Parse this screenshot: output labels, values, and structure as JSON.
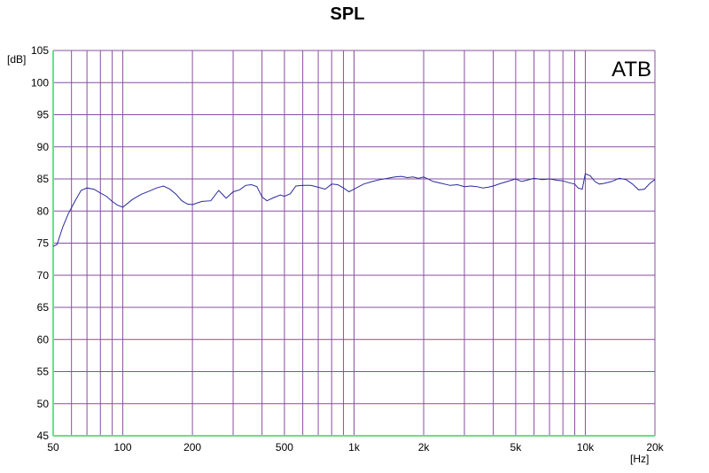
{
  "chart_data": {
    "type": "line",
    "title": "SPL",
    "ylabel": "[dB]",
    "xlabel": "[Hz]",
    "annotation": "ATB",
    "xscale": "log",
    "xlim": [
      50,
      20000
    ],
    "ylim": [
      45,
      105
    ],
    "grid": true,
    "colors": {
      "grid": "#8a4fa0",
      "axis": "#66e08a",
      "line": "#2a2a9e"
    },
    "y_ticks": [
      45,
      50,
      55,
      60,
      65,
      70,
      75,
      80,
      85,
      90,
      95,
      100,
      105
    ],
    "x_ticks": [
      {
        "value": 50,
        "label": "50"
      },
      {
        "value": 100,
        "label": "100"
      },
      {
        "value": 200,
        "label": "200"
      },
      {
        "value": 500,
        "label": "500"
      },
      {
        "value": 1000,
        "label": "1k"
      },
      {
        "value": 2000,
        "label": "2k"
      },
      {
        "value": 5000,
        "label": "5k"
      },
      {
        "value": 10000,
        "label": "10k"
      },
      {
        "value": 20000,
        "label": "20k"
      }
    ],
    "x_gridlines": [
      60,
      70,
      80,
      90,
      100,
      200,
      300,
      400,
      500,
      600,
      700,
      800,
      900,
      1000,
      2000,
      3000,
      4000,
      5000,
      6000,
      7000,
      8000,
      9000,
      10000,
      20000
    ],
    "series": [
      {
        "x": [
          50,
          52,
          55,
          58,
          62,
          66,
          70,
          75,
          80,
          85,
          90,
          95,
          100,
          110,
          120,
          130,
          140,
          150,
          160,
          170,
          180,
          190,
          200,
          220,
          240,
          260,
          280,
          300,
          320,
          340,
          360,
          380,
          400,
          420,
          450,
          480,
          500,
          530,
          560,
          600,
          650,
          700,
          750,
          800,
          850,
          900,
          950,
          1000,
          1100,
          1200,
          1300,
          1400,
          1500,
          1600,
          1700,
          1800,
          1900,
          2000,
          2200,
          2400,
          2600,
          2800,
          3000,
          3200,
          3400,
          3600,
          3800,
          4000,
          4300,
          4600,
          5000,
          5300,
          5600,
          6000,
          6500,
          7000,
          7500,
          8000,
          8500,
          9000,
          9300,
          9700,
          10000,
          10500,
          11000,
          11500,
          12000,
          13000,
          14000,
          15000,
          16000,
          17000,
          18000,
          19000,
          20000
        ],
        "y": [
          74.5,
          74.8,
          77.5,
          79.5,
          81.5,
          83.2,
          83.6,
          83.4,
          82.8,
          82.3,
          81.5,
          80.9,
          80.6,
          81.8,
          82.6,
          83.1,
          83.6,
          83.9,
          83.4,
          82.6,
          81.6,
          81.1,
          81.0,
          81.5,
          81.6,
          83.2,
          82.0,
          83.0,
          83.3,
          84.0,
          84.1,
          83.8,
          82.2,
          81.6,
          82.1,
          82.5,
          82.3,
          82.7,
          83.9,
          84.0,
          84.0,
          83.7,
          83.4,
          84.2,
          84.1,
          83.6,
          83.0,
          83.4,
          84.2,
          84.6,
          84.9,
          85.1,
          85.3,
          85.4,
          85.2,
          85.3,
          85.1,
          85.3,
          84.6,
          84.3,
          84.0,
          84.1,
          83.8,
          83.9,
          83.8,
          83.6,
          83.7,
          83.9,
          84.3,
          84.6,
          85.0,
          84.6,
          84.8,
          85.1,
          84.9,
          85.0,
          84.8,
          84.7,
          84.4,
          84.2,
          83.6,
          83.4,
          85.8,
          85.5,
          84.6,
          84.2,
          84.3,
          84.6,
          85.1,
          84.9,
          84.2,
          83.3,
          83.4,
          84.3,
          84.9
        ]
      }
    ]
  }
}
